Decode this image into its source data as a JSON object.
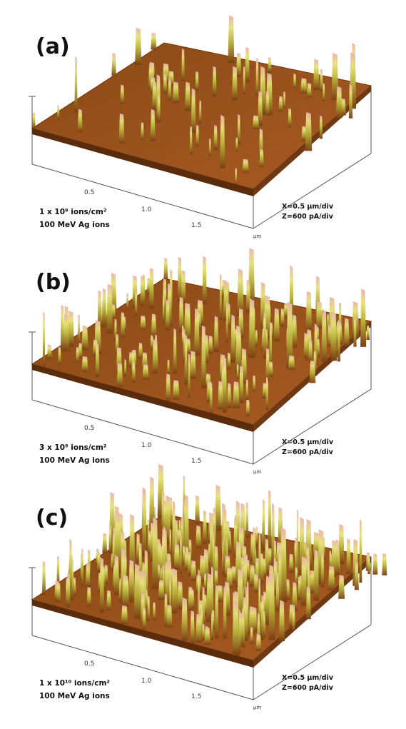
{
  "panels": [
    {
      "label": "(a)",
      "ticks": [
        "0.5",
        "1.0",
        "1.5"
      ],
      "unit": "µm",
      "fluence": "1 x 10⁹ ions/cm²",
      "ion": "100 MeV Ag ions",
      "xscale": "X=0.5 µm/div",
      "zscale": "Z=600 pA/div"
    },
    {
      "label": "(b)",
      "ticks": [
        "0.5",
        "1.0",
        "1.5"
      ],
      "unit": "µm",
      "fluence": "3 x 10⁹ ions/cm²",
      "ion": "100 MeV Ag ions",
      "xscale": "X=0.5 µm/div",
      "zscale": "Z=600 pA/div"
    },
    {
      "label": "(c)",
      "ticks": [
        "0.5",
        "1.0",
        "1.5"
      ],
      "unit": "µm",
      "fluence": "1 x 10¹⁰ ions/cm²",
      "ion": "100 MeV Ag ions",
      "xscale": "X=0.5 µm/div",
      "zscale": "Z=600 pA/div"
    }
  ]
}
